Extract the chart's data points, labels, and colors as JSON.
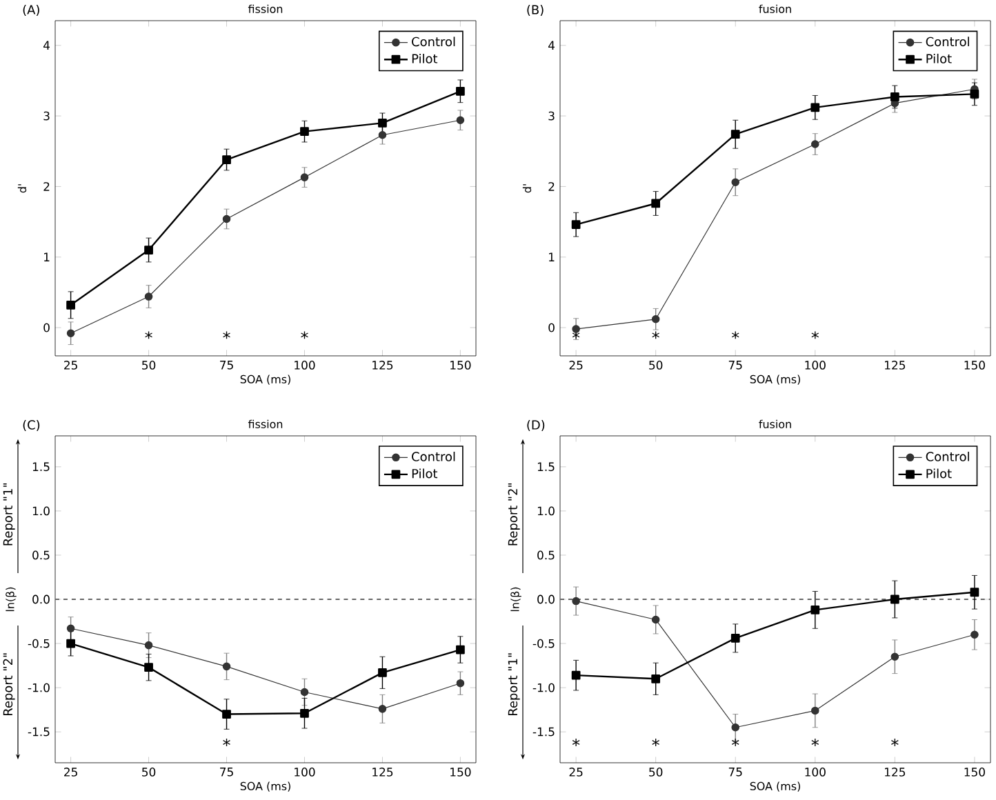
{
  "chart_data": [
    {
      "type": "line",
      "title": "fission",
      "xlabel": "SOA (ms)",
      "ylabel": "d'",
      "x": [
        25,
        50,
        75,
        100,
        125,
        150
      ],
      "xlim": [
        20,
        155
      ],
      "ylim": [
        -0.4,
        4.35
      ],
      "xticks": [
        25,
        50,
        75,
        100,
        125,
        150
      ],
      "yticks": [
        0,
        1,
        2,
        3,
        4
      ],
      "legend": "top right",
      "series": [
        {
          "name": "Control",
          "color": "#333333",
          "marker": "circle",
          "values": [
            -0.08,
            0.44,
            1.54,
            2.13,
            2.73,
            2.94
          ],
          "errors": [
            0.16,
            0.16,
            0.14,
            0.14,
            0.13,
            0.14
          ]
        },
        {
          "name": "Pilot",
          "color": "#000000",
          "marker": "square",
          "values": [
            0.32,
            1.1,
            2.38,
            2.78,
            2.9,
            3.35
          ],
          "errors": [
            0.19,
            0.17,
            0.15,
            0.15,
            0.14,
            0.16
          ]
        }
      ],
      "annotations": [
        "(A)",
        {
          "text": "*",
          "x": 50
        },
        {
          "text": "*",
          "x": 75
        },
        {
          "text": "*",
          "x": 100
        }
      ]
    },
    {
      "type": "line",
      "title": "fusion",
      "xlabel": "SOA (ms)",
      "ylabel": "d'",
      "x": [
        25,
        50,
        75,
        100,
        125,
        150
      ],
      "xlim": [
        20,
        155
      ],
      "ylim": [
        -0.4,
        4.35
      ],
      "xticks": [
        25,
        50,
        75,
        100,
        125,
        150
      ],
      "yticks": [
        0,
        1,
        2,
        3,
        4
      ],
      "legend": "top right",
      "series": [
        {
          "name": "Control",
          "color": "#333333",
          "marker": "circle",
          "values": [
            -0.02,
            0.12,
            2.06,
            2.6,
            3.18,
            3.38
          ],
          "errors": [
            0.15,
            0.15,
            0.19,
            0.15,
            0.13,
            0.14
          ]
        },
        {
          "name": "Pilot",
          "color": "#000000",
          "marker": "square",
          "values": [
            1.46,
            1.76,
            2.74,
            3.12,
            3.27,
            3.31
          ],
          "errors": [
            0.17,
            0.17,
            0.2,
            0.17,
            0.16,
            0.16
          ]
        }
      ],
      "annotations": [
        "(B)",
        {
          "text": "*",
          "x": 25
        },
        {
          "text": "*",
          "x": 50
        },
        {
          "text": "*",
          "x": 75
        },
        {
          "text": "*",
          "x": 100
        }
      ]
    },
    {
      "type": "line",
      "title": "fission",
      "xlabel": "SOA (ms)",
      "ylabel": "ln(β)",
      "x": [
        25,
        50,
        75,
        100,
        125,
        150
      ],
      "xlim": [
        20,
        155
      ],
      "ylim": [
        -1.85,
        1.85
      ],
      "xticks": [
        25,
        50,
        75,
        100,
        125,
        150
      ],
      "yticks": [
        {
          "value": -1.5,
          "label": "-1.5"
        },
        {
          "value": -1.0,
          "label": "-1.0"
        },
        {
          "value": -0.5,
          "label": "-0.5"
        },
        {
          "value": 0,
          "label": "0.0"
        },
        {
          "value": 0.5,
          "label": "0.5"
        },
        {
          "value": 1.0,
          "label": "1.0"
        },
        {
          "value": 1.5,
          "label": "1.5"
        }
      ],
      "legend": "top right",
      "ref_lines": [
        {
          "axis": "y",
          "value": 0,
          "color": "#666666",
          "line_style": "dashed"
        }
      ],
      "series": [
        {
          "name": "Control",
          "color": "#333333",
          "marker": "circle",
          "values": [
            -0.33,
            -0.52,
            -0.76,
            -1.05,
            -1.24,
            -0.95
          ],
          "errors": [
            0.13,
            0.14,
            0.15,
            0.15,
            0.16,
            0.13
          ]
        },
        {
          "name": "Pilot",
          "color": "#000000",
          "marker": "square",
          "values": [
            -0.5,
            -0.77,
            -1.3,
            -1.29,
            -0.83,
            -0.57
          ],
          "errors": [
            0.14,
            0.15,
            0.17,
            0.17,
            0.18,
            0.15
          ]
        }
      ],
      "annotations": [
        "(C)",
        "Report \"1\"",
        "Report \"2\"",
        {
          "text": "*",
          "x": 75
        }
      ]
    },
    {
      "type": "line",
      "title": "fusion",
      "xlabel": "SOA (ms)",
      "ylabel": "ln(β)",
      "x": [
        25,
        50,
        75,
        100,
        125,
        150
      ],
      "xlim": [
        20,
        155
      ],
      "ylim": [
        -1.85,
        1.85
      ],
      "xticks": [
        25,
        50,
        75,
        100,
        125,
        150
      ],
      "yticks": [
        {
          "value": -1.5,
          "label": "-1.5"
        },
        {
          "value": -1.0,
          "label": "-1.0"
        },
        {
          "value": -0.5,
          "label": "-0.5"
        },
        {
          "value": 0,
          "label": "0.0"
        },
        {
          "value": 0.5,
          "label": "0.5"
        },
        {
          "value": 1.0,
          "label": "1.0"
        },
        {
          "value": 1.5,
          "label": "1.5"
        }
      ],
      "legend": "top right",
      "ref_lines": [
        {
          "axis": "y",
          "value": 0,
          "color": "#666666",
          "line_style": "dashed"
        }
      ],
      "series": [
        {
          "name": "Control",
          "color": "#333333",
          "marker": "circle",
          "values": [
            -0.02,
            -0.23,
            -1.45,
            -1.26,
            -0.65,
            -0.4
          ],
          "errors": [
            0.16,
            0.16,
            0.15,
            0.19,
            0.19,
            0.17
          ]
        },
        {
          "name": "Pilot",
          "color": "#000000",
          "marker": "square",
          "values": [
            -0.86,
            -0.9,
            -0.44,
            -0.12,
            0.0,
            0.08
          ],
          "errors": [
            0.17,
            0.18,
            0.16,
            0.21,
            0.21,
            0.19
          ]
        }
      ],
      "annotations": [
        "(D)",
        "Report \"2\"",
        "Report \"1\"",
        {
          "text": "*",
          "x": 25
        },
        {
          "text": "*",
          "x": 50
        },
        {
          "text": "*",
          "x": 75
        },
        {
          "text": "*",
          "x": 100
        },
        {
          "text": "*",
          "x": 125
        }
      ]
    }
  ]
}
